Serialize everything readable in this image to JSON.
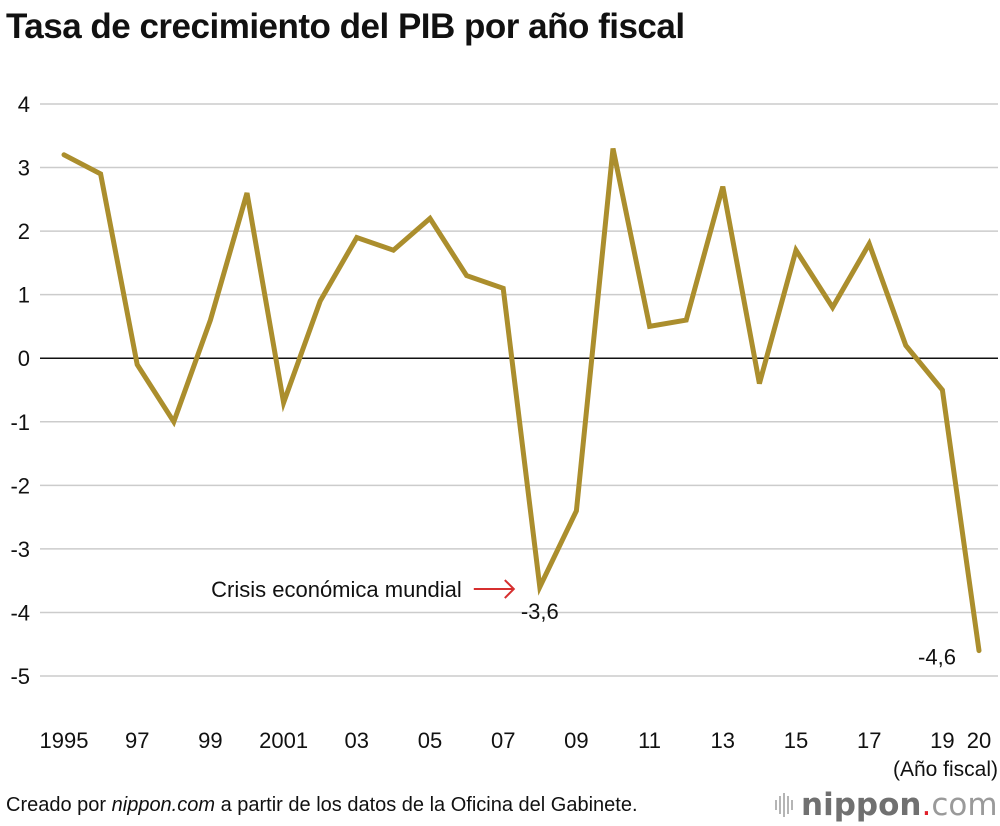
{
  "title": "Tasa de crecimiento del PIB por año fiscal",
  "footer": {
    "prefix": "Creado por ",
    "source_italic": "nippon.com",
    "suffix": " a partir de los datos de la Oficina del Gabinete."
  },
  "logo": {
    "brand": "nippon",
    "dot": ".",
    "tld": "com",
    "icon": "sound-bars-icon"
  },
  "colors": {
    "line": "#ab8e2d",
    "arrow": "#d62f2f",
    "grid": "#cccccc",
    "zero": "#111111"
  },
  "chart_data": {
    "type": "line",
    "title": "Tasa de crecimiento del PIB por año fiscal",
    "xlabel": "(Año fiscal)",
    "ylabel": "",
    "x": [
      1995,
      1996,
      1997,
      1998,
      1999,
      2000,
      2001,
      2002,
      2003,
      2004,
      2005,
      2006,
      2007,
      2008,
      2009,
      2010,
      2011,
      2012,
      2013,
      2014,
      2015,
      2016,
      2017,
      2018,
      2019,
      2020
    ],
    "series": [
      {
        "name": "Tasa de crecimiento del PIB",
        "values": [
          3.2,
          2.9,
          -0.1,
          -1.0,
          0.6,
          2.6,
          -0.7,
          0.9,
          1.9,
          1.7,
          2.2,
          1.3,
          1.1,
          -3.6,
          -2.4,
          3.3,
          0.5,
          0.6,
          2.7,
          -0.4,
          1.7,
          0.8,
          1.8,
          0.2,
          -0.5,
          -4.6
        ]
      }
    ],
    "ylim": [
      -5,
      4
    ],
    "yticks": [
      4,
      3,
      2,
      1,
      0,
      -1,
      -2,
      -3,
      -4,
      -5
    ],
    "ytick_labels": [
      "4",
      "3",
      "2",
      "1",
      "0",
      "-1",
      "-2",
      "-3",
      "-4",
      "-5"
    ],
    "xticks": [
      {
        "x": 1995,
        "label": "1995"
      },
      {
        "x": 1997,
        "label": "97"
      },
      {
        "x": 1999,
        "label": "99"
      },
      {
        "x": 2001,
        "label": "2001"
      },
      {
        "x": 2003,
        "label": "03"
      },
      {
        "x": 2005,
        "label": "05"
      },
      {
        "x": 2007,
        "label": "07"
      },
      {
        "x": 2009,
        "label": "09"
      },
      {
        "x": 2011,
        "label": "11"
      },
      {
        "x": 2013,
        "label": "13"
      },
      {
        "x": 2015,
        "label": "15"
      },
      {
        "x": 2017,
        "label": "17"
      },
      {
        "x": 2019,
        "label": "19"
      },
      {
        "x": 2020,
        "label": "20"
      }
    ],
    "grid": true,
    "legend": "none",
    "annotations": [
      {
        "x": 2008,
        "y": -3.6,
        "text": "-3,6",
        "type": "data-label"
      },
      {
        "x": 2020,
        "y": -4.6,
        "text": "-4,6",
        "type": "data-label"
      },
      {
        "x": 2008,
        "y": -3.6,
        "text": "Crisis económica mundial",
        "type": "arrow-callout"
      }
    ]
  }
}
